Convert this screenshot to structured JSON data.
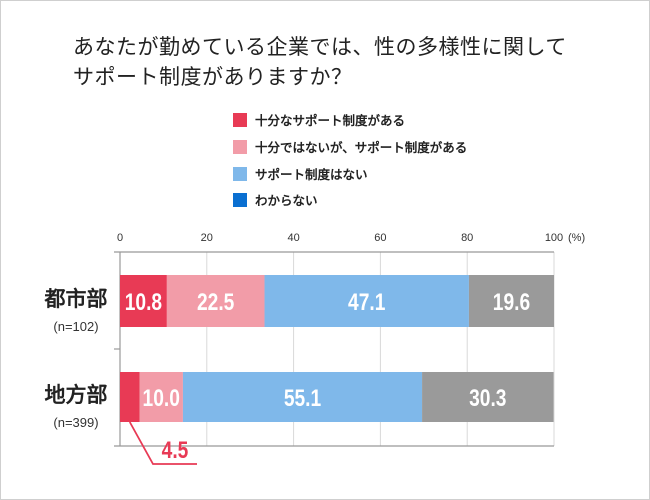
{
  "chart_data": {
    "type": "bar",
    "orientation": "horizontal-stacked",
    "title_lines": [
      "あなたが勤めている企業では、性の多様性に関して",
      "サポート制度がありますか？"
    ],
    "categories": [
      {
        "name": "都市部",
        "n": "(n=102)"
      },
      {
        "name": "地方部",
        "n": "(n=399)"
      }
    ],
    "series": [
      {
        "name": "十分なサポート制度がある",
        "color": "#e83a55",
        "bar_color": "#e83a55",
        "values": [
          10.8,
          4.5
        ]
      },
      {
        "name": "十分ではないが、サポート制度がある",
        "color": "#f29ca8",
        "bar_color": "#f29ca8",
        "values": [
          22.5,
          10.0
        ]
      },
      {
        "name": "サポート制度はない",
        "color": "#7fb8ea",
        "bar_color": "#7fb8ea",
        "values": [
          47.1,
          55.1
        ]
      },
      {
        "name": "わからない",
        "color": "#0a6fd1",
        "bar_color": "#9a9a9a",
        "values": [
          19.6,
          30.3
        ]
      }
    ],
    "value_labels": [
      [
        "10.8",
        "22.5",
        "47.1",
        "19.6"
      ],
      [
        "4.5",
        "10.0",
        "55.1",
        "30.3"
      ]
    ],
    "xticks": [
      0,
      20,
      40,
      60,
      80,
      100
    ],
    "xunit": "(%)",
    "xlim": [
      0,
      100
    ],
    "grid": true,
    "legend_position": "top-center"
  }
}
